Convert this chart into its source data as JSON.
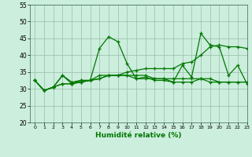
{
  "title": "",
  "xlabel": "Humidité relative (%)",
  "ylabel": "",
  "bg_color": "#cceedd",
  "grid_color": "#99bbaa",
  "line_color": "#007700",
  "xlim": [
    -0.5,
    23
  ],
  "ylim": [
    20,
    55
  ],
  "yticks": [
    20,
    25,
    30,
    35,
    40,
    45,
    50,
    55
  ],
  "xticks": [
    0,
    1,
    2,
    3,
    4,
    5,
    6,
    7,
    8,
    9,
    10,
    11,
    12,
    13,
    14,
    15,
    16,
    17,
    18,
    19,
    20,
    21,
    22,
    23
  ],
  "series": [
    [
      32.5,
      29.5,
      30.5,
      34,
      32,
      32.5,
      32.5,
      42,
      45.5,
      44,
      37.5,
      33,
      33.5,
      32.5,
      32.5,
      32,
      37,
      33.5,
      46.5,
      43,
      42.5,
      34,
      37,
      31.5
    ],
    [
      32.5,
      29.5,
      30.5,
      34,
      31.5,
      32.5,
      32.5,
      34,
      34,
      34,
      34,
      34,
      34,
      33,
      33,
      32,
      32,
      32,
      33,
      32,
      32,
      32,
      32,
      32
    ],
    [
      32.5,
      29.5,
      30.5,
      31.5,
      31.5,
      32,
      32.5,
      33,
      34,
      34,
      35,
      35.5,
      36,
      36,
      36,
      36,
      37.5,
      38,
      40,
      42.5,
      43,
      42.5,
      42.5,
      42
    ],
    [
      32.5,
      29.5,
      30.5,
      31.5,
      31.5,
      32,
      32.5,
      33,
      34,
      34,
      34,
      33,
      33,
      33,
      33,
      33,
      33,
      33,
      33,
      33,
      32,
      32,
      32,
      32
    ]
  ]
}
